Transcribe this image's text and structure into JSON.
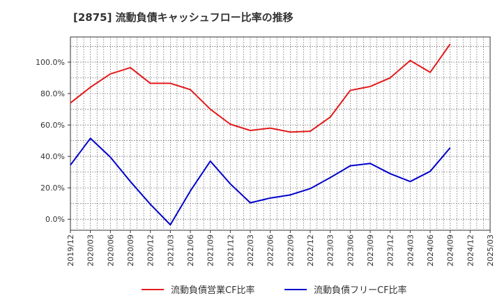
{
  "chart_data": {
    "type": "line",
    "title": "[2875]  流動負債キャッシュフロー比率の推移",
    "x": [
      "2019/12",
      "2020/03",
      "2020/06",
      "2020/09",
      "2020/12",
      "2021/03",
      "2021/06",
      "2021/09",
      "2021/12",
      "2022/03",
      "2022/06",
      "2022/09",
      "2022/12",
      "2023/03",
      "2023/06",
      "2023/09",
      "2023/12",
      "2024/03",
      "2024/06",
      "2024/09",
      "2024/12",
      "2025/03"
    ],
    "ytick_labels": [
      "0.0%",
      "20.0%",
      "40.0%",
      "60.0%",
      "80.0%",
      "100.0%"
    ],
    "ylim": [
      -7,
      116
    ],
    "grid": true,
    "legend_position": "bottom",
    "series": [
      {
        "name": "流動負債営業CF比率",
        "color": "#e31a1c",
        "values": [
          74,
          84,
          92.5,
          96.5,
          86.5,
          86.5,
          82.5,
          70,
          60.5,
          56.5,
          58,
          55.5,
          56,
          65,
          82,
          84.5,
          90,
          101,
          93.5,
          111.5,
          null,
          null
        ]
      },
      {
        "name": "流動負債フリーCF比率",
        "color": "#0000cc",
        "values": [
          34.5,
          51.5,
          39.5,
          24,
          9.5,
          -3.5,
          18,
          37,
          22.5,
          10.5,
          13.5,
          15.5,
          19.5,
          26.5,
          34,
          35.5,
          29,
          24,
          30.5,
          45.5,
          null,
          null
        ]
      }
    ]
  }
}
